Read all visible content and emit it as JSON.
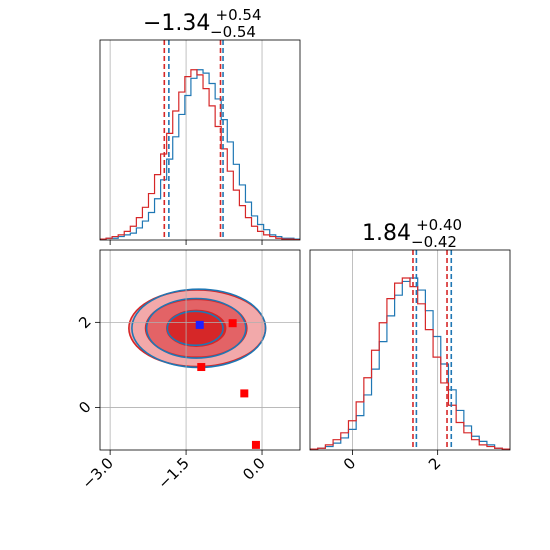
{
  "chart_data": [
    {
      "panel": "marginal-x",
      "type": "histogram",
      "title": {
        "main": "−1.34",
        "sup": "+0.54",
        "sub": "−0.54"
      },
      "xlim": [
        -3.2,
        0.75
      ],
      "quantiles_blue": [
        -1.84,
        -0.77
      ],
      "quantiles_red": [
        -1.93,
        -0.82
      ],
      "series": [
        {
          "color": "#1f77b4",
          "values": [
            0.5,
            1,
            1,
            2,
            3,
            4,
            7,
            11,
            16,
            24,
            35,
            47,
            60,
            73,
            84,
            94,
            99,
            97,
            91,
            82,
            70,
            57,
            44,
            32,
            22,
            14,
            9,
            6,
            3,
            2,
            1,
            1,
            0.5
          ]
        },
        {
          "color": "#d62728",
          "values": [
            0.5,
            1,
            2,
            3,
            5,
            8,
            13,
            19,
            27,
            38,
            50,
            62,
            75,
            86,
            95,
            99,
            96,
            88,
            78,
            66,
            53,
            40,
            29,
            20,
            13,
            8,
            5,
            3,
            2,
            1,
            0.5,
            0.5,
            0.2
          ]
        }
      ]
    },
    {
      "panel": "joint",
      "type": "contour",
      "xlim": [
        -3.2,
        0.75
      ],
      "ylim": [
        -1.0,
        3.7
      ],
      "x_ticks": [
        -3.0,
        -1.5,
        0.0
      ],
      "x_tick_labels": [
        "−3.0",
        "−1.5",
        "0.0"
      ],
      "y_ticks": [
        0,
        2
      ],
      "y_tick_labels": [
        "0",
        "2"
      ],
      "blue_contours": [
        {
          "cx": -1.32,
          "cy": 1.86,
          "rx": 0.55,
          "ry": 0.4
        },
        {
          "cx": -1.3,
          "cy": 1.86,
          "rx": 0.98,
          "ry": 0.7
        },
        {
          "cx": -1.25,
          "cy": 1.86,
          "rx": 1.32,
          "ry": 0.92
        }
      ],
      "red_contours": [
        {
          "cx": -1.3,
          "cy": 1.86,
          "rx": 0.58,
          "ry": 0.42,
          "fill": "#d62728"
        },
        {
          "cx": -1.3,
          "cy": 1.86,
          "rx": 1.0,
          "ry": 0.68,
          "fill": "#e36366"
        },
        {
          "cx": -1.28,
          "cy": 1.86,
          "rx": 1.35,
          "ry": 0.9,
          "fill": "#f2a9aa"
        }
      ],
      "markers": [
        {
          "color": "#1f1fff",
          "x": -1.23,
          "y": 1.94
        },
        {
          "color": "#ff0000",
          "x": -0.58,
          "y": 1.98
        },
        {
          "color": "#ff0000",
          "x": -1.2,
          "y": 0.95
        },
        {
          "color": "#ff0000",
          "x": -0.35,
          "y": 0.33
        },
        {
          "color": "#ff0000",
          "x": -0.12,
          "y": -0.88
        }
      ]
    },
    {
      "panel": "marginal-y",
      "type": "histogram",
      "title": {
        "main": "1.84",
        "sup": "+0.40",
        "sub": "−0.42"
      },
      "xlim": [
        -1.0,
        3.7
      ],
      "x_ticks": [
        0,
        2
      ],
      "x_tick_labels": [
        "0",
        "2"
      ],
      "quantiles_blue": [
        1.5,
        2.32
      ],
      "quantiles_red": [
        1.42,
        2.22
      ],
      "series": [
        {
          "color": "#1f77b4",
          "values": [
            0.5,
            1,
            2,
            4,
            7,
            12,
            20,
            32,
            47,
            63,
            78,
            90,
            98,
            100,
            93,
            81,
            66,
            50,
            35,
            23,
            14,
            8,
            5,
            3,
            1,
            0.5
          ]
        },
        {
          "color": "#d62728",
          "values": [
            0.5,
            1,
            3,
            6,
            10,
            17,
            28,
            42,
            58,
            74,
            88,
            97,
            100,
            95,
            85,
            70,
            54,
            39,
            26,
            16,
            10,
            6,
            3,
            2,
            1,
            0.5
          ]
        }
      ]
    }
  ]
}
